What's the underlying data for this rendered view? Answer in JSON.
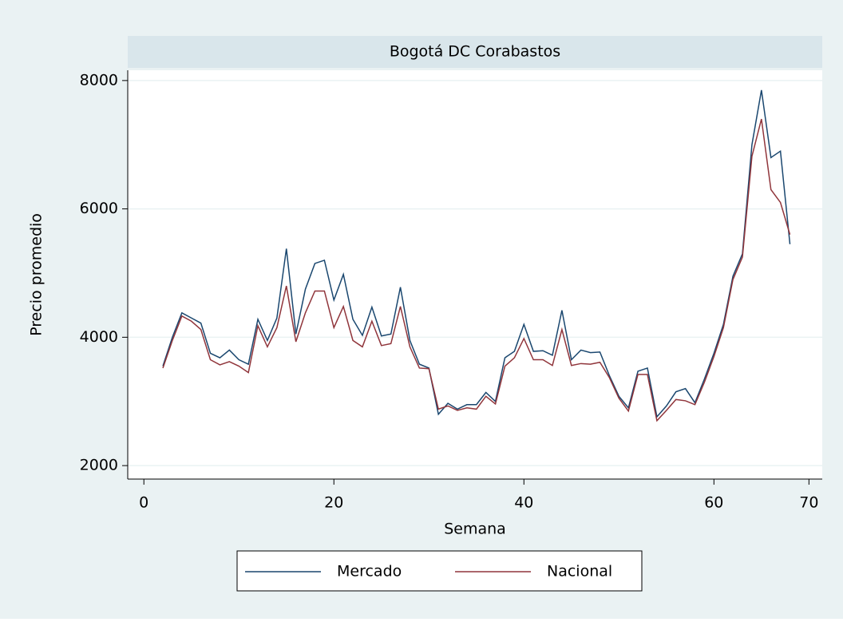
{
  "chart_data": {
    "type": "line",
    "title": "Bogotá DC Corabastos",
    "xlabel": "Semana",
    "ylabel": "Precio promedio",
    "x": [
      2,
      3,
      4,
      5,
      6,
      7,
      8,
      9,
      10,
      11,
      12,
      13,
      14,
      15,
      16,
      17,
      18,
      19,
      20,
      21,
      22,
      23,
      24,
      25,
      26,
      27,
      28,
      29,
      30,
      31,
      32,
      33,
      34,
      35,
      36,
      37,
      38,
      39,
      40,
      41,
      42,
      43,
      44,
      45,
      46,
      47,
      48,
      49,
      50,
      51,
      52,
      53,
      54,
      55,
      56,
      57,
      58,
      59,
      60,
      61,
      62,
      63,
      64,
      65,
      66,
      67,
      68
    ],
    "series": [
      {
        "name": "Mercado",
        "color": "#1a476f",
        "values": [
          3550,
          4000,
          4380,
          4300,
          4220,
          3750,
          3680,
          3800,
          3650,
          3580,
          4280,
          3950,
          4300,
          5380,
          4050,
          4750,
          5150,
          5200,
          4580,
          4980,
          4280,
          4030,
          4470,
          4020,
          4050,
          4780,
          3950,
          3580,
          3520,
          2800,
          2970,
          2880,
          2950,
          2950,
          3140,
          3000,
          3680,
          3780,
          4200,
          3780,
          3790,
          3720,
          4420,
          3650,
          3800,
          3760,
          3770,
          3400,
          3080,
          2900,
          3470,
          3520,
          2760,
          2930,
          3150,
          3200,
          2980,
          3350,
          3750,
          4200,
          4950,
          5300,
          7000,
          7850,
          6800,
          6900,
          5450
        ]
      },
      {
        "name": "Nacional",
        "color": "#90353b",
        "values": [
          3520,
          3950,
          4330,
          4250,
          4120,
          3650,
          3570,
          3620,
          3550,
          3450,
          4180,
          3850,
          4150,
          4800,
          3930,
          4380,
          4720,
          4720,
          4150,
          4480,
          3950,
          3850,
          4250,
          3870,
          3900,
          4480,
          3850,
          3520,
          3510,
          2880,
          2930,
          2860,
          2900,
          2880,
          3080,
          2960,
          3550,
          3680,
          3980,
          3650,
          3650,
          3560,
          4120,
          3560,
          3590,
          3580,
          3610,
          3370,
          3050,
          2850,
          3420,
          3420,
          2700,
          2860,
          3030,
          3010,
          2950,
          3300,
          3700,
          4150,
          4900,
          5250,
          6820,
          7400,
          6300,
          6100,
          5600
        ]
      }
    ],
    "xlim": [
      -1.7,
      71.4
    ],
    "ylim": [
      1790,
      8160
    ],
    "xticks": [
      0,
      20,
      40,
      60,
      70
    ],
    "yticks": [
      2000,
      4000,
      6000,
      8000
    ],
    "grid": true,
    "legend": "bottom"
  }
}
